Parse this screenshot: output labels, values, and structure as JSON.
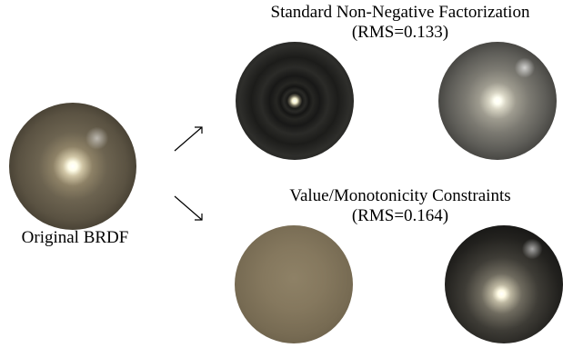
{
  "original": {
    "label": "Original BRDF"
  },
  "top_result": {
    "title": "Standard Non-Negative Factorization",
    "rms": "(RMS=0.133)"
  },
  "bottom_result": {
    "title": "Value/Monotonicity Constraints",
    "rms": "(RMS=0.164)"
  }
}
